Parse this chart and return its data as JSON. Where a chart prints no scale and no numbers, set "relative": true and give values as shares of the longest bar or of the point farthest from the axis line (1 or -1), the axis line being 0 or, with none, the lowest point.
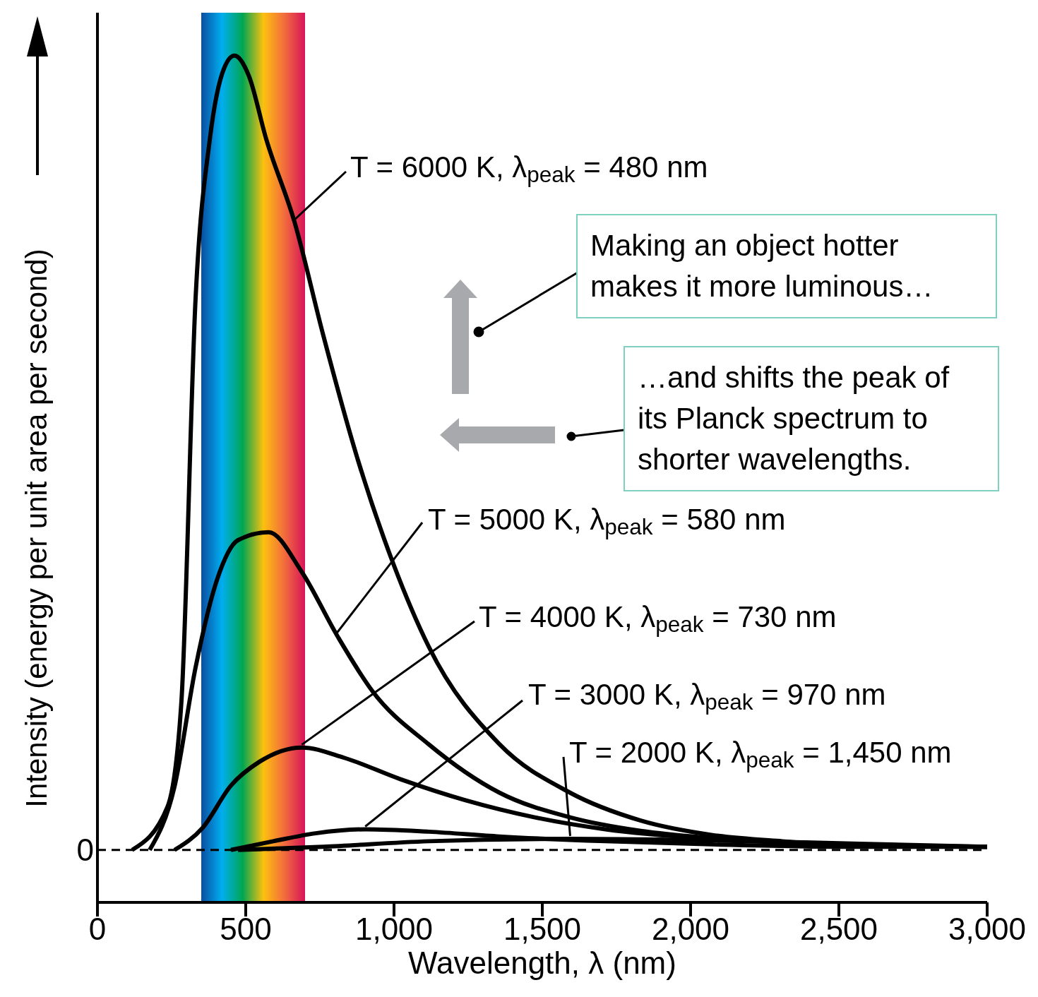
{
  "chart_data": {
    "type": "line",
    "relative": true,
    "xlabel": "Wavelength, λ (nm)",
    "ylabel": "Intensity (energy per unit area per second)",
    "xlim": [
      0,
      3000
    ],
    "xticks": [
      0,
      500,
      {
        "value": 1000,
        "label": "1,000"
      },
      {
        "value": 1500,
        "label": "1,500"
      },
      {
        "value": 2000,
        "label": "2,000"
      },
      {
        "value": 2500,
        "label": "2,500"
      },
      {
        "value": 3000,
        "label": "3,000"
      }
    ],
    "marker": "none",
    "line_style": "solid",
    "series": [
      {
        "name": "T = 6000 K, λ$_{peak}$ = 480 nm",
        "color": "#000000",
        "x": [
          117,
          236,
          283,
          331,
          379,
          427,
          462,
          510,
          569,
          665,
          760,
          879,
          998,
          1117,
          1356,
          1594,
          1832,
          2070,
          2309,
          2547,
          3000
        ],
        "values": [
          0,
          0.054,
          0.186,
          0.695,
          0.895,
          0.984,
          1,
          0.975,
          0.895,
          0.79,
          0.65,
          0.49,
          0.36,
          0.256,
          0.133,
          0.072,
          0.037,
          0.019,
          0.011,
          0.006,
          0.004
        ]
      },
      {
        "name": "T = 5000 K, λ$_{peak}$ = 580 nm",
        "color": "#000000",
        "x": [
          176,
          260,
          331,
          403,
          474,
          577,
          689,
          808,
          927,
          1117,
          1356,
          1594,
          1832,
          2070,
          2547,
          3000
        ],
        "values": [
          0,
          0.08,
          0.23,
          0.34,
          0.39,
          0.4,
          0.35,
          0.27,
          0.2,
          0.133,
          0.072,
          0.041,
          0.024,
          0.015,
          0.007,
          0.004
        ]
      },
      {
        "name": "T = 4000 K, λ$_{peak}$ = 730 nm",
        "color": "#000000",
        "x": [
          260,
          355,
          450,
          546,
          689,
          832,
          1022,
          1237,
          1475,
          1713,
          2070,
          2547,
          3000
        ],
        "values": [
          0,
          0.028,
          0.081,
          0.111,
          0.129,
          0.116,
          0.089,
          0.063,
          0.041,
          0.026,
          0.014,
          0.007,
          0.004
        ]
      },
      {
        "name": "T = 3000 K, λ$_{peak}$ = 970 nm",
        "color": "#000000",
        "x": [
          450,
          593,
          736,
          903,
          1117,
          1356,
          1713,
          2070,
          2547,
          3000
        ],
        "values": [
          0,
          0.011,
          0.021,
          0.026,
          0.023,
          0.017,
          0.011,
          0.007,
          0.004,
          0.004
        ]
      },
      {
        "name": "T = 2000 K, λ$_{peak}$ = 1,450 nm",
        "color": "#000000",
        "x": [
          474,
          760,
          1117,
          1594,
          2070,
          2547,
          3000
        ],
        "values": [
          0,
          0.004,
          0.011,
          0.014,
          0.012,
          0.008,
          0.004
        ]
      }
    ],
    "ref_lines": [
      {
        "axis": "y",
        "value": 0,
        "label": "0",
        "line_style": "dashed"
      }
    ],
    "bands": [
      {
        "axis": "x",
        "from": 350,
        "to": 700
      }
    ],
    "annotations": [
      "Making an object hotter makes it more luminous…",
      "…and shifts the peak of its Planck spectrum to shorter wavelengths."
    ]
  }
}
